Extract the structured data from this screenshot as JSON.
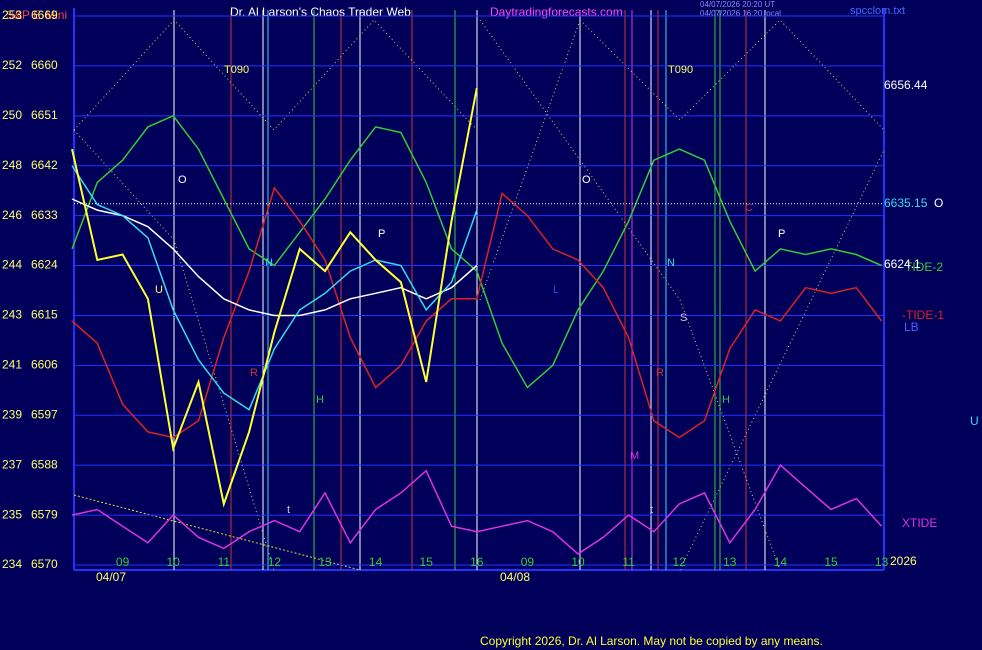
{
  "chart_data": {
    "type": "line",
    "title": "Dr. Al Larson's Chaos Trader Web",
    "symbol": "S&P E-Mini",
    "site": "Daytradingforecasts.com",
    "stamp1": "04/07/2026 20:20 UT",
    "stamp2": "04/07/2026 16:20 local",
    "file": "spcclom.txt",
    "copyright": "Copyright 2026, Dr. Al Larson. May not be copied by any means.",
    "categories": [
      null,
      null,
      "09",
      null,
      "10",
      null,
      "11",
      null,
      "12",
      null,
      "13",
      null,
      "14",
      null,
      "15",
      null,
      "16",
      null,
      "09",
      null,
      "10",
      null,
      "11",
      null,
      "12",
      null,
      "13",
      null,
      "14",
      null,
      "15",
      null,
      "13"
    ],
    "dates": [
      "04/07",
      "04/08"
    ],
    "year": "2026",
    "ylim": [
      6570,
      6669
    ],
    "yticks": [
      6570,
      6579,
      6588,
      6597,
      6606,
      6615,
      6624,
      6633,
      6642,
      6651,
      6660,
      6669
    ],
    "left_labels": [
      "234",
      "235",
      "237",
      "239",
      "241",
      "243",
      "244",
      "246",
      "248",
      "250",
      "252",
      "253"
    ],
    "series": [
      {
        "name": "TIDE-2",
        "color": "#33cc33",
        "values": [
          6627,
          6639,
          6643,
          6649,
          6651,
          6645,
          6636,
          6627,
          6624,
          6630,
          6636,
          6643,
          6649,
          6648,
          6639,
          6627,
          6623,
          6610,
          6602,
          6606,
          6616,
          6623,
          6632,
          6643,
          6645,
          6643,
          6632,
          6623,
          6627,
          6626,
          6627,
          6626,
          6624
        ]
      },
      {
        "name": "-TIDE-1",
        "color": "#dd2222",
        "values": [
          6614,
          6610,
          6599,
          6594,
          6593,
          6596,
          6611,
          6623,
          6638,
          6632,
          6625,
          6611,
          6602,
          6606,
          6614,
          6618,
          6618,
          6637,
          6633,
          6627,
          6625,
          6620,
          6611,
          6596,
          6593,
          6596,
          6609,
          6616,
          6614,
          6620,
          6619,
          6620,
          6614
        ]
      },
      {
        "name": "XTIDE",
        "color": "#dd33dd",
        "values": [
          6579,
          6580,
          6577,
          6574,
          6579,
          6575,
          6573,
          6576,
          6578,
          6576,
          6583,
          6574,
          6580,
          6583,
          6587,
          6577,
          6576,
          6577,
          6578,
          6576,
          6572,
          6575,
          6579,
          6576,
          6581,
          6583,
          6574,
          6580,
          6588,
          6584,
          6580,
          6582,
          6577
        ]
      },
      {
        "name": "LB",
        "color": "#ffffff",
        "values": [
          6636,
          6634,
          6633,
          6631,
          6627,
          6622,
          6618,
          6616,
          6615,
          6615,
          6616,
          6618,
          6619,
          6620,
          6618,
          6620,
          6624,
          null,
          null,
          null,
          null,
          null,
          null,
          null,
          null,
          null,
          null,
          null,
          null,
          null,
          null,
          null,
          null
        ]
      },
      {
        "name": "U",
        "color": "#33ddee",
        "values": [
          6642,
          6635,
          6633,
          6629,
          6616,
          6607,
          6601,
          6598,
          6609,
          6616,
          6619,
          6623,
          6625,
          6624,
          6616,
          6621,
          6634,
          null,
          null,
          null,
          null,
          null,
          null,
          null,
          null,
          null,
          null,
          null,
          null,
          null,
          null,
          null,
          null
        ]
      },
      {
        "name": "S&P E-Mini",
        "color": "#ffff33",
        "values": [
          6645,
          6625,
          6626,
          6618,
          6591,
          6603,
          6581,
          6594,
          6612,
          6627,
          6623,
          6630,
          6625,
          6621,
          6603,
          6632,
          6656,
          null,
          null,
          null,
          null,
          null,
          null,
          null,
          null,
          null,
          null,
          null,
          null,
          null,
          null,
          null,
          null
        ]
      }
    ],
    "price_labels": [
      {
        "value": 6656.44
      },
      {
        "value": 6635.15,
        "tag": "O"
      },
      {
        "value": 6624.1
      }
    ],
    "markers": [
      "T090",
      "T090",
      "O",
      "O",
      "P",
      "P",
      "N",
      "N",
      "S",
      "H",
      "H",
      "M",
      "R",
      "R",
      "C",
      "L",
      "t",
      "t",
      "U"
    ]
  }
}
